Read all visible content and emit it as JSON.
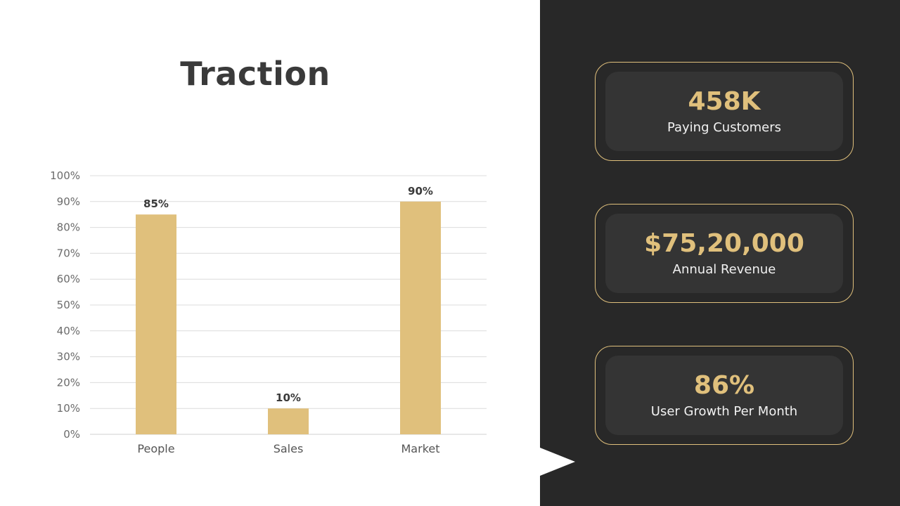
{
  "title": "Traction",
  "colors": {
    "accent": "#e0c07c",
    "panel_bg": "#282828",
    "card_bg": "#343434",
    "title_text": "#3a3a3a"
  },
  "chart_data": {
    "type": "bar",
    "categories": [
      "People",
      "Sales",
      "Market"
    ],
    "values": [
      85,
      10,
      90
    ],
    "data_labels": [
      "85%",
      "10%",
      "90%"
    ],
    "ylim": [
      0,
      100
    ],
    "y_ticks": [
      "0%",
      "10%",
      "20%",
      "30%",
      "40%",
      "50%",
      "60%",
      "70%",
      "80%",
      "90%",
      "100%"
    ],
    "grid": true,
    "legend": "none",
    "bar_color": "#e0c07c"
  },
  "stats": [
    {
      "value": "458K",
      "label": "Paying Customers"
    },
    {
      "value": "$75,20,000",
      "label": "Annual Revenue"
    },
    {
      "value": "86%",
      "label": "User Growth Per Month"
    }
  ]
}
